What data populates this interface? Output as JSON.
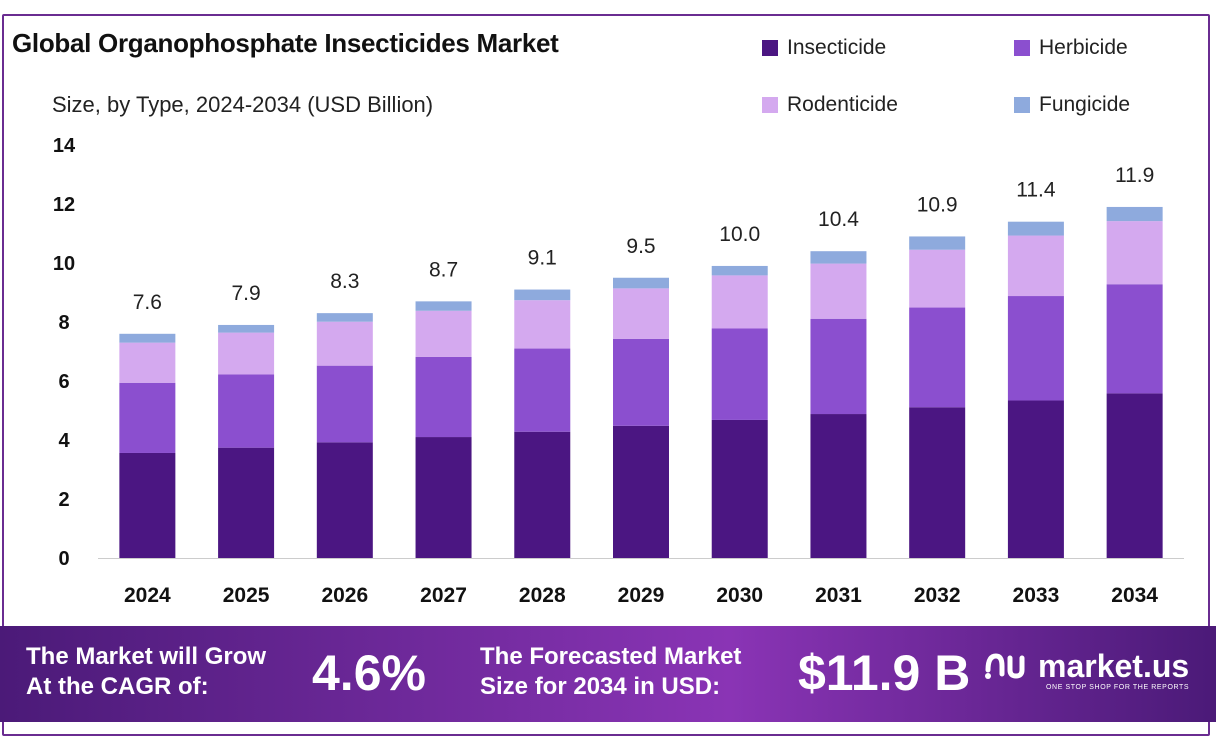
{
  "header": {
    "title": "Global Organophosphate Insecticides Market",
    "subtitle": "Size, by Type, 2024-2034 (USD Billion)"
  },
  "legend": [
    {
      "label": "Insecticide",
      "color": "#4b1682"
    },
    {
      "label": "Herbicide",
      "color": "#8b4fcf"
    },
    {
      "label": "Rodenticide",
      "color": "#d4a9ef"
    },
    {
      "label": "Fungicide",
      "color": "#8eaadd"
    }
  ],
  "chart_data": {
    "type": "bar",
    "stacked": true,
    "categories": [
      "2024",
      "2025",
      "2026",
      "2027",
      "2028",
      "2029",
      "2030",
      "2031",
      "2032",
      "2033",
      "2034"
    ],
    "series": [
      {
        "name": "Insecticide",
        "color": "#4b1682",
        "values": [
          3.56,
          3.74,
          3.92,
          4.1,
          4.28,
          4.48,
          4.68,
          4.88,
          5.11,
          5.34,
          5.58
        ]
      },
      {
        "name": "Herbicide",
        "color": "#8b4fcf",
        "values": [
          2.38,
          2.48,
          2.6,
          2.72,
          2.82,
          2.95,
          3.1,
          3.23,
          3.38,
          3.54,
          3.7
        ]
      },
      {
        "name": "Rodenticide",
        "color": "#d4a9ef",
        "values": [
          1.36,
          1.42,
          1.49,
          1.56,
          1.64,
          1.71,
          1.8,
          1.87,
          1.96,
          2.05,
          2.14
        ]
      },
      {
        "name": "Fungicide",
        "color": "#8eaadd",
        "values": [
          0.3,
          0.26,
          0.29,
          0.32,
          0.36,
          0.36,
          0.32,
          0.42,
          0.45,
          0.47,
          0.48
        ]
      }
    ],
    "totals": [
      "7.6",
      "7.9",
      "8.3",
      "8.7",
      "9.1",
      "9.5",
      "10.0",
      "10.4",
      "10.9",
      "11.4",
      "11.9"
    ],
    "yticks": [
      "0",
      "2",
      "4",
      "6",
      "8",
      "10",
      "12",
      "14"
    ],
    "ylim": [
      0,
      14
    ],
    "grid": false,
    "legend_position": "top-right"
  },
  "footer": {
    "cagr_text_line1": "The Market will Grow",
    "cagr_text_line2": "At the CAGR of:",
    "cagr_value": "4.6%",
    "forecast_text_line1": "The Forecasted Market",
    "forecast_text_line2": "Size for 2034 in USD:",
    "forecast_value": "$11.9 B",
    "logo_name": "market.us",
    "logo_tagline": "ONE STOP SHOP FOR THE REPORTS"
  }
}
